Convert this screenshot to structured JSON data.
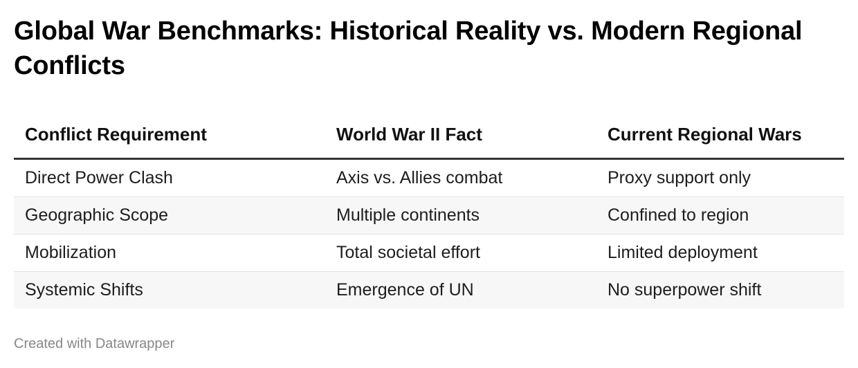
{
  "chart_data": {
    "type": "table",
    "title": "Global War Benchmarks: Historical Reality vs. Modern Regional Conflicts",
    "columns": [
      "Conflict Requirement",
      "World War II Fact",
      "Current Regional Wars"
    ],
    "rows": [
      [
        "Direct Power Clash",
        "Axis vs. Allies combat",
        "Proxy support only"
      ],
      [
        "Geographic Scope",
        "Multiple continents",
        "Confined to region"
      ],
      [
        "Mobilization",
        "Total societal effort",
        "Limited deployment"
      ],
      [
        "Systemic Shifts",
        "Emergence of UN",
        "No superpower shift"
      ]
    ]
  },
  "footer": {
    "credit": "Created with Datawrapper"
  }
}
